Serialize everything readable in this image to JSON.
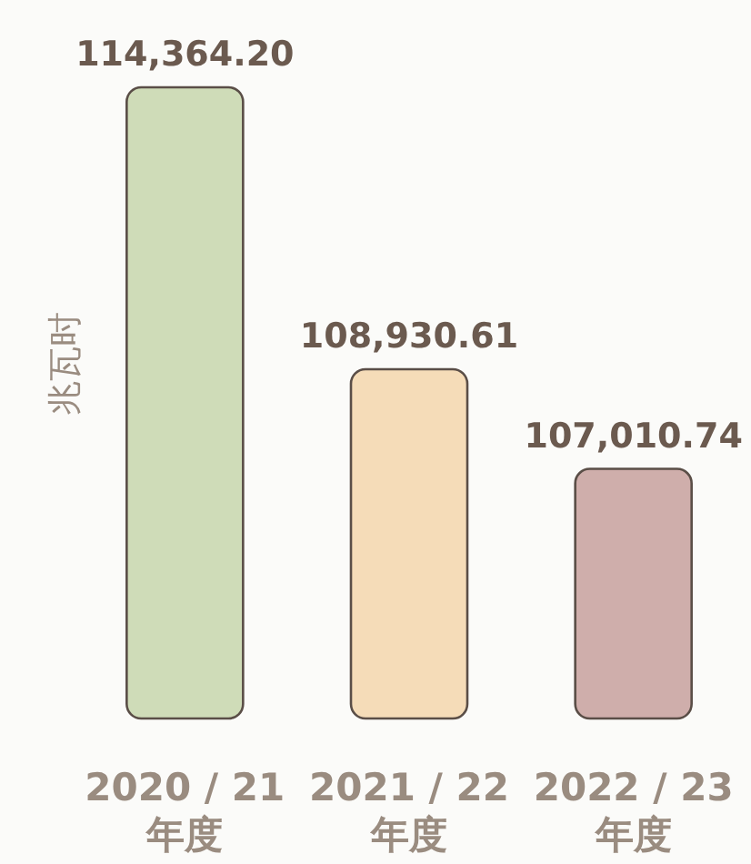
{
  "chart_data": {
    "type": "bar",
    "ylabel": "兆瓦时",
    "categories": [
      "2020 / 21\n年度",
      "2021 / 22\n年度",
      "2022 / 23\n年度"
    ],
    "values": [
      114364.2,
      108930.61,
      107010.74
    ],
    "colors": [
      "#cfdcb8",
      "#f5dcb8",
      "#cfaeab"
    ],
    "value_labels": [
      "114,364.20",
      "108,930.61",
      "107,010.74"
    ],
    "ylim": [
      102200,
      114364.2
    ]
  }
}
